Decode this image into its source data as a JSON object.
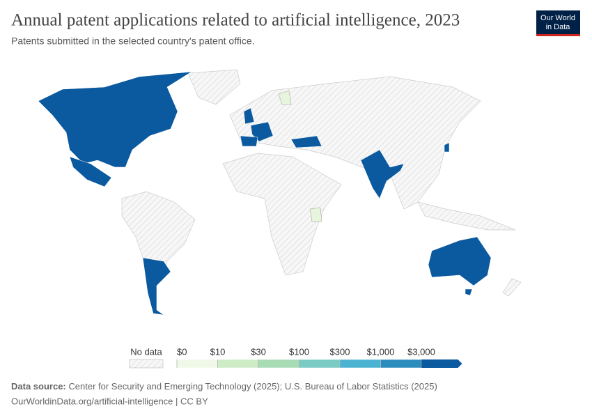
{
  "header": {
    "title": "Annual patent applications related to artificial intelligence, 2023",
    "subtitle": "Patents submitted in the selected country's patent office."
  },
  "logo": {
    "line1": "Our World",
    "line2": "in Data"
  },
  "legend": {
    "no_data": "No data",
    "ticks": [
      {
        "value": 0,
        "label": "$0"
      },
      {
        "value": 10,
        "label": "$10"
      },
      {
        "value": 30,
        "label": "$30"
      },
      {
        "value": 100,
        "label": "$100"
      },
      {
        "value": 300,
        "label": "$300"
      },
      {
        "value": 1000,
        "label": "$1,000"
      },
      {
        "value": 3000,
        "label": "$3,000"
      }
    ],
    "colors": [
      "#f0f9e8",
      "#cdebc5",
      "#a8dcb5",
      "#7acbc4",
      "#4cb3d3",
      "#2b8cbe",
      "#0b5aa0"
    ]
  },
  "footer": {
    "source_label": "Data source:",
    "source": "Center for Security and Emerging Technology (2025); U.S. Bureau of Labor Statistics (2025)",
    "url": "OurWorldinData.org/artificial-intelligence | CC BY"
  }
}
